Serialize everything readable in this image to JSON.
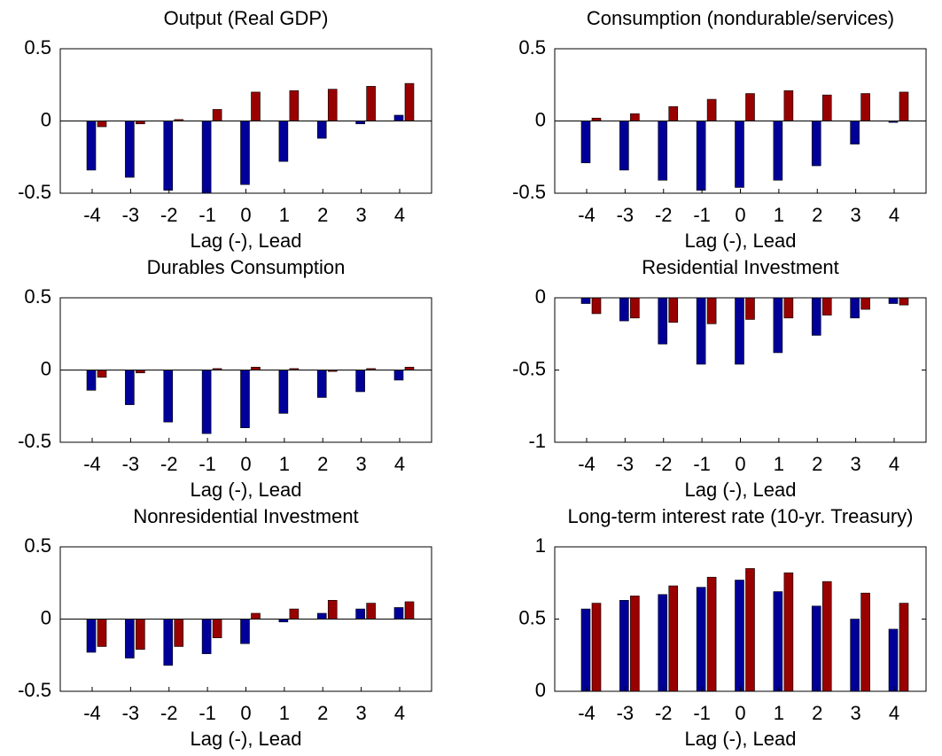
{
  "chart_data": [
    {
      "type": "bar",
      "title": "Output (Real GDP)",
      "x_label": "Lag (-), Lead",
      "categories": [
        "-4",
        "-3",
        "-2",
        "-1",
        "0",
        "1",
        "2",
        "3",
        "4"
      ],
      "series": [
        {
          "color": "#000099",
          "values": [
            -0.34,
            -0.39,
            -0.48,
            -0.52,
            -0.44,
            -0.28,
            -0.12,
            -0.02,
            0.04
          ]
        },
        {
          "color": "#990000",
          "values": [
            -0.04,
            -0.02,
            0.01,
            0.08,
            0.2,
            0.21,
            0.22,
            0.24,
            0.26
          ]
        }
      ],
      "ylim": [
        -0.5,
        0.5
      ],
      "yticks": [
        -0.5,
        0,
        0.5
      ]
    },
    {
      "type": "bar",
      "title": "Consumption (nondurable/services)",
      "x_label": "Lag (-), Lead",
      "categories": [
        "-4",
        "-3",
        "-2",
        "-1",
        "0",
        "1",
        "2",
        "3",
        "4"
      ],
      "series": [
        {
          "color": "#000099",
          "values": [
            -0.29,
            -0.34,
            -0.41,
            -0.48,
            -0.46,
            -0.41,
            -0.31,
            -0.16,
            -0.01
          ]
        },
        {
          "color": "#990000",
          "values": [
            0.02,
            0.05,
            0.1,
            0.15,
            0.19,
            0.21,
            0.18,
            0.19,
            0.2
          ]
        }
      ],
      "ylim": [
        -0.5,
        0.5
      ],
      "yticks": [
        -0.5,
        0,
        0.5
      ]
    },
    {
      "type": "bar",
      "title": "Durables Consumption",
      "x_label": "Lag (-), Lead",
      "categories": [
        "-4",
        "-3",
        "-2",
        "-1",
        "0",
        "1",
        "2",
        "3",
        "4"
      ],
      "series": [
        {
          "color": "#000099",
          "values": [
            -0.14,
            -0.24,
            -0.36,
            -0.44,
            -0.4,
            -0.3,
            -0.19,
            -0.15,
            -0.07
          ]
        },
        {
          "color": "#990000",
          "values": [
            -0.05,
            -0.02,
            0,
            0.01,
            0.02,
            0.01,
            -0.01,
            0.01,
            0.02
          ]
        }
      ],
      "ylim": [
        -0.5,
        0.5
      ],
      "yticks": [
        -0.5,
        0,
        0.5
      ]
    },
    {
      "type": "bar",
      "title": "Residential Investment",
      "x_label": "Lag (-), Lead",
      "categories": [
        "-4",
        "-3",
        "-2",
        "-1",
        "0",
        "1",
        "2",
        "3",
        "4"
      ],
      "series": [
        {
          "color": "#000099",
          "values": [
            -0.04,
            -0.16,
            -0.32,
            -0.46,
            -0.46,
            -0.38,
            -0.26,
            -0.14,
            -0.04
          ]
        },
        {
          "color": "#990000",
          "values": [
            -0.11,
            -0.14,
            -0.17,
            -0.18,
            -0.15,
            -0.14,
            -0.12,
            -0.08,
            -0.05
          ]
        }
      ],
      "ylim": [
        -1,
        0
      ],
      "yticks": [
        -1,
        -0.5,
        0
      ]
    },
    {
      "type": "bar",
      "title": "Nonresidential Investment",
      "x_label": "Lag (-), Lead",
      "categories": [
        "-4",
        "-3",
        "-2",
        "-1",
        "0",
        "1",
        "2",
        "3",
        "4"
      ],
      "series": [
        {
          "color": "#000099",
          "values": [
            -0.23,
            -0.27,
            -0.32,
            -0.24,
            -0.17,
            -0.02,
            0.04,
            0.07,
            0.08
          ]
        },
        {
          "color": "#990000",
          "values": [
            -0.19,
            -0.21,
            -0.19,
            -0.13,
            0.04,
            0.07,
            0.13,
            0.11,
            0.12
          ]
        }
      ],
      "ylim": [
        -0.5,
        0.5
      ],
      "yticks": [
        -0.5,
        0,
        0.5
      ]
    },
    {
      "type": "bar",
      "title": "Long-term interest rate (10-yr. Treasury)",
      "x_label": "Lag (-), Lead",
      "categories": [
        "-4",
        "-3",
        "-2",
        "-1",
        "0",
        "1",
        "2",
        "3",
        "4"
      ],
      "series": [
        {
          "color": "#000099",
          "values": [
            0.57,
            0.63,
            0.67,
            0.72,
            0.77,
            0.69,
            0.59,
            0.5,
            0.43
          ]
        },
        {
          "color": "#990000",
          "values": [
            0.61,
            0.66,
            0.73,
            0.79,
            0.85,
            0.82,
            0.76,
            0.68,
            0.61
          ]
        }
      ],
      "ylim": [
        0,
        1
      ],
      "yticks": [
        0,
        0.5,
        1
      ]
    }
  ]
}
